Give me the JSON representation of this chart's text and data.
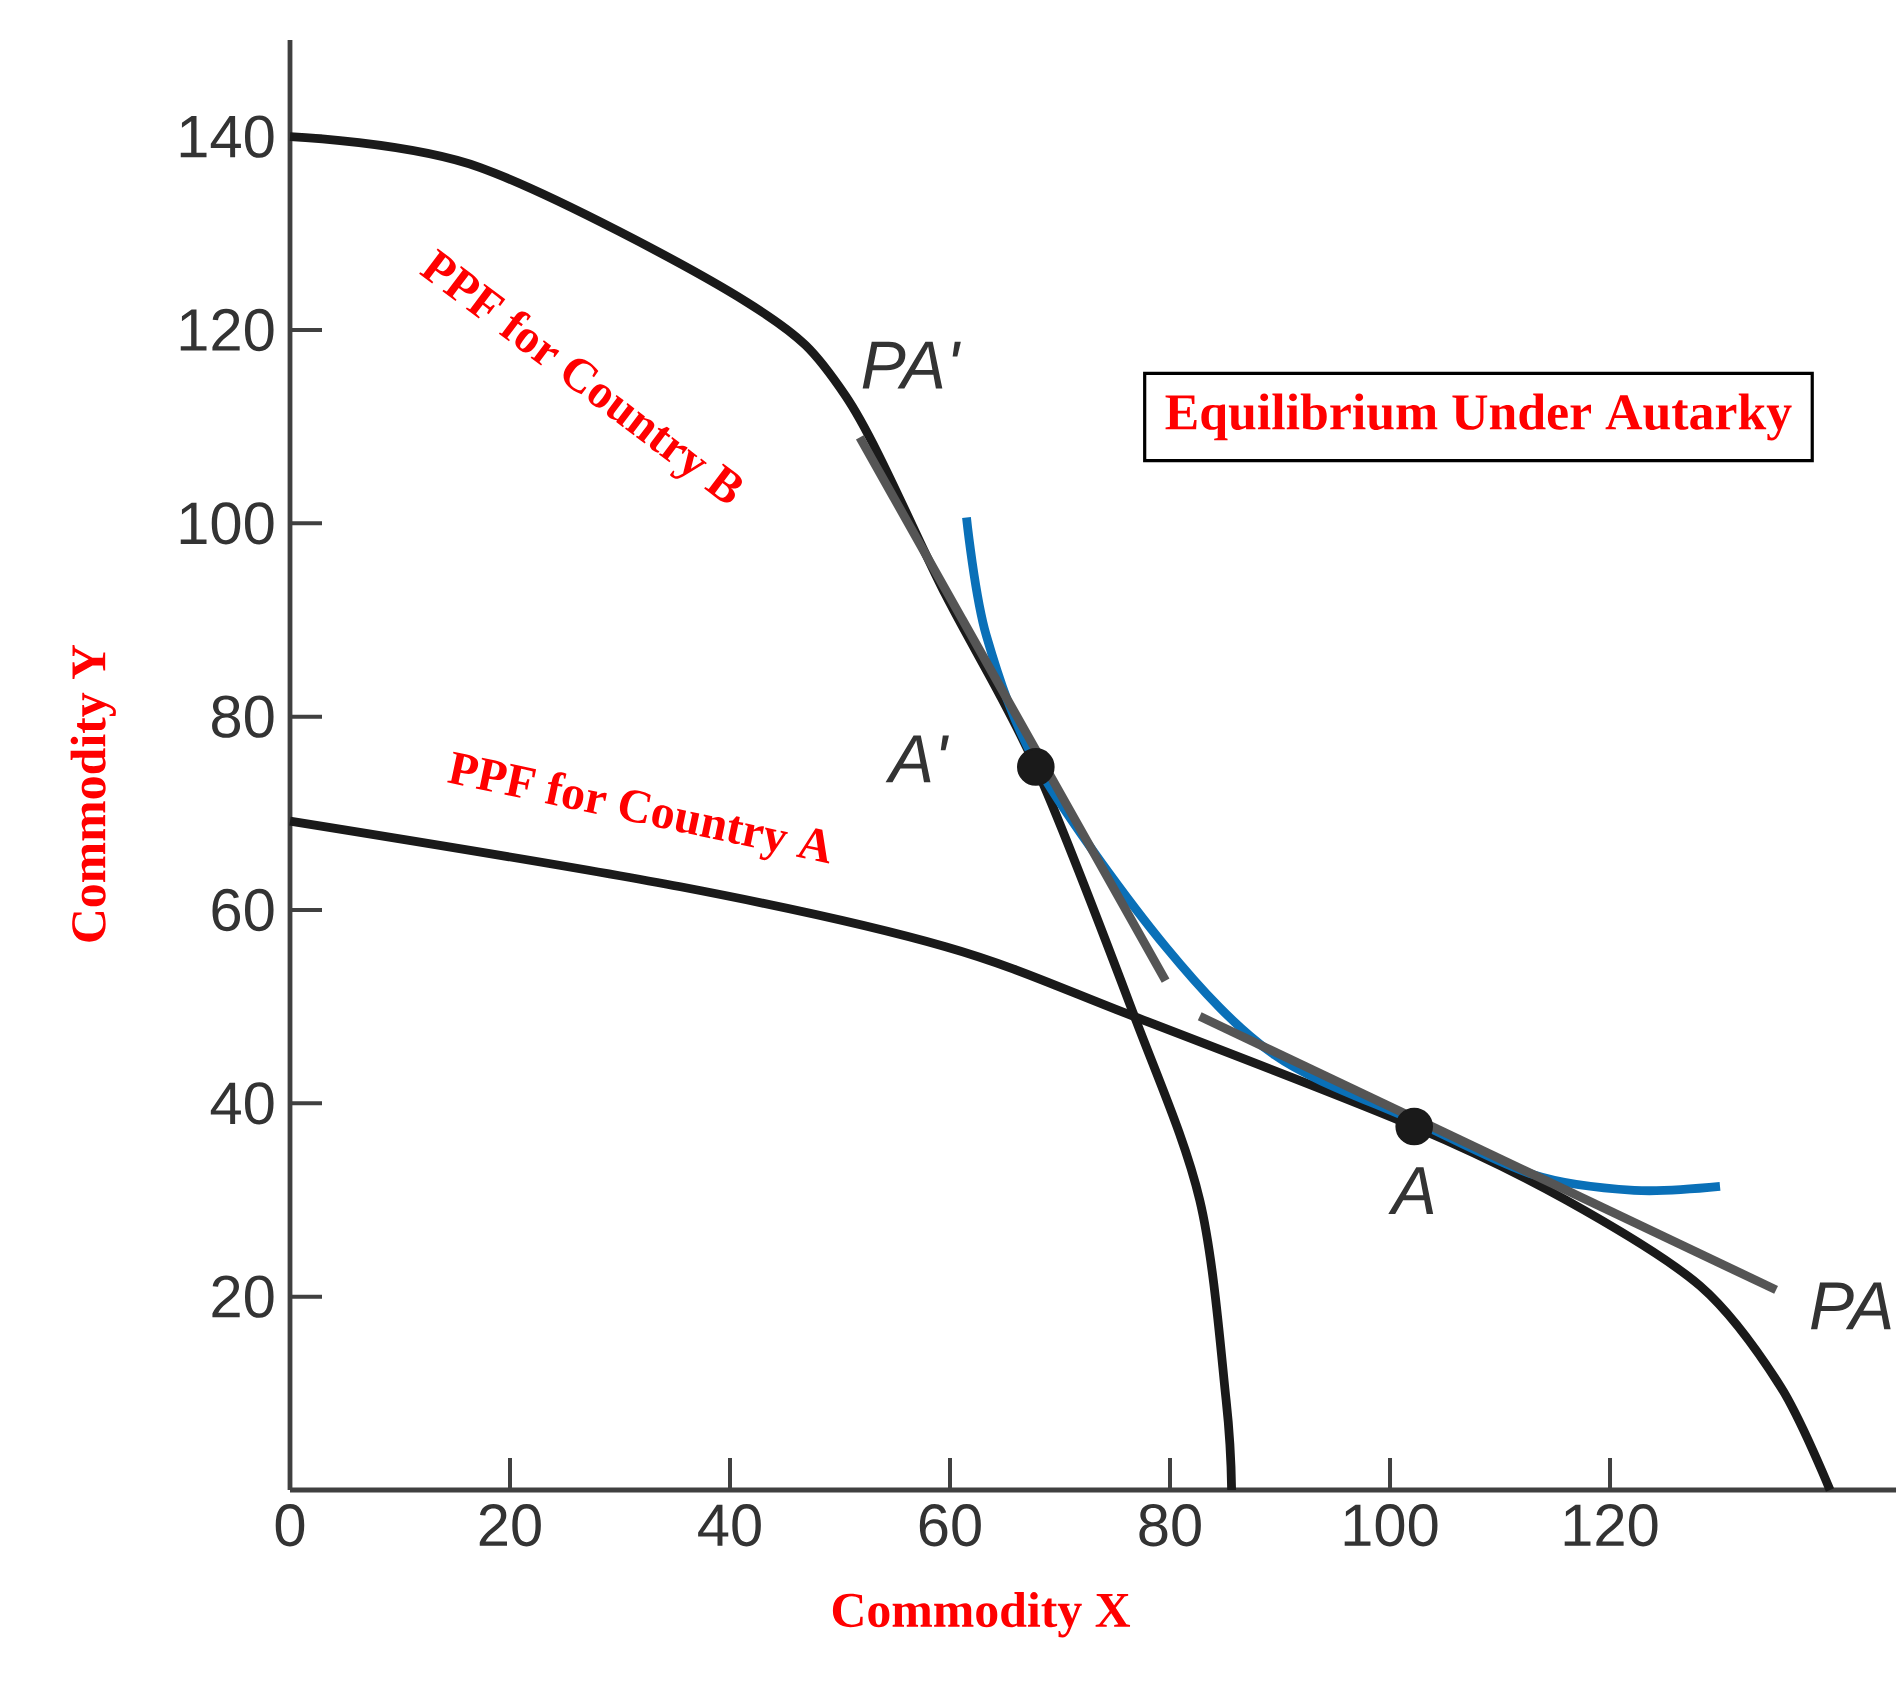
{
  "chart_data": {
    "type": "line",
    "title": "Equilibrium Under Autarky",
    "xlabel": "Commodity X",
    "ylabel": "Commodity Y",
    "xlim": [
      0,
      146
    ],
    "ylim": [
      0,
      150
    ],
    "xticks": [
      0,
      20,
      40,
      60,
      80,
      100,
      120
    ],
    "yticks": [
      20,
      40,
      60,
      80,
      100,
      120,
      140
    ],
    "grid": false,
    "series": [
      {
        "color": "#1a1a1a",
        "x": [
          0,
          17.3,
          41.5,
          50.5,
          59.6,
          67.8,
          76.7,
          82.7,
          85.1,
          85.6
        ],
        "values": [
          140,
          136.8,
          122.9,
          113.2,
          92.6,
          74.8,
          49.2,
          30,
          9.3,
          0
        ]
      },
      {
        "color": "#1a1a1a",
        "x": [
          0,
          35.5,
          59.6,
          76.7,
          102.2,
          116,
          128.2,
          135.5,
          140
        ],
        "values": [
          69.2,
          62.4,
          56.2,
          49,
          37.6,
          30,
          21.1,
          10.7,
          0
        ]
      },
      {
        "color": "#0a70b8",
        "x": [
          61.5,
          63.3,
          68.2,
          79.6,
          89.5,
          102.2,
          113.1,
          122.2,
          130
        ],
        "values": [
          100.6,
          88.4,
          74.4,
          56.2,
          45,
          38.2,
          32.6,
          31,
          31.4
        ]
      },
      {
        "color": "#555555",
        "x": [
          51.8,
          79.6
        ],
        "values": [
          108.9,
          52.7
        ]
      },
      {
        "color": "#555555",
        "x": [
          82.7,
          135.1
        ],
        "values": [
          49,
          20.7
        ]
      },
      {
        "type": "scatter",
        "marker": "circle",
        "color": "#1a1a1a",
        "x": [
          67.8,
          102.2
        ],
        "values": [
          74.8,
          37.6
        ]
      }
    ],
    "annotations": [
      "PPF for Country B",
      "PPF for Country A",
      {
        "text": "PA'",
        "x": 51.8,
        "y": 108.9
      },
      {
        "text": "A'",
        "x": 67.8,
        "y": 74.8
      },
      {
        "text": "A",
        "x": 102.2,
        "y": 37.6
      },
      {
        "text": "PA",
        "x": 135.1,
        "y": 20.7
      }
    ]
  }
}
